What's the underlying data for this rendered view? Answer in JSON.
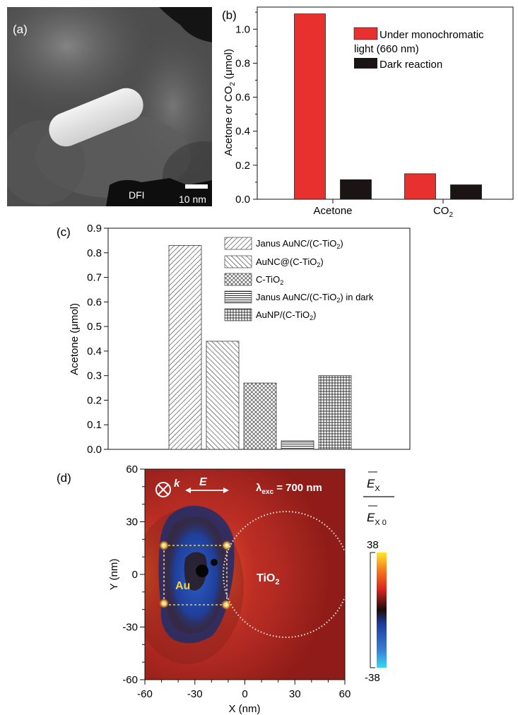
{
  "figure": {
    "panel_a": {
      "label": "(a)",
      "mode_label": "DFI",
      "scale_bar": "10 nm"
    },
    "panel_b": {
      "label": "(b)",
      "ylabel_main": "Acetone or CO",
      "ylabel_sub": "2",
      "ylabel_unit": " (μmol)",
      "legend": [
        {
          "line1": "Under monochromatic",
          "line2": "light (660 nm)",
          "color": "#e8312f"
        },
        {
          "line1": "Dark reaction",
          "line2": "",
          "color": "#1a1512"
        }
      ],
      "xticks": [
        {
          "main": "Acetone",
          "sub": ""
        },
        {
          "main": "CO",
          "sub": "2"
        }
      ],
      "yticks": [
        "0.0",
        "0.2",
        "0.4",
        "0.6",
        "0.8",
        "1.0"
      ]
    },
    "panel_c": {
      "label": "(c)",
      "ylabel": "Acetone (μmol)",
      "yticks": [
        "0.0",
        "0.1",
        "0.2",
        "0.3",
        "0.4",
        "0.5",
        "0.6",
        "0.7",
        "0.8",
        "0.9"
      ],
      "legend": [
        {
          "main": "Janus AuNC/(C-TiO",
          "sub": "2",
          "tail": ")"
        },
        {
          "main": "AuNC@(C-TiO",
          "sub": "2",
          "tail": ")"
        },
        {
          "main": "C-TiO",
          "sub": "2",
          "tail": ""
        },
        {
          "main": "Janus AuNC/(C-TiO",
          "sub": "2",
          "tail": ") in dark"
        },
        {
          "main": "AuNP/(C-TiO",
          "sub": "2",
          "tail": ")"
        }
      ]
    },
    "panel_d": {
      "label": "(d)",
      "k_label": "k",
      "e_label": "E",
      "lambda_main": "λ",
      "lambda_sub": "exc",
      "lambda_value": " = 700 nm",
      "au_label": "Au",
      "tio2_main": "TiO",
      "tio2_sub": "2",
      "xlabel": "X (nm)",
      "ylabel": "Y (nm)",
      "xticks": [
        "-60",
        "-30",
        "0",
        "30",
        "60"
      ],
      "yticks": [
        "60",
        "30",
        "0",
        "-30",
        "-60"
      ],
      "cbar_num": "E",
      "cbar_num_sub": "X",
      "cbar_den": "E",
      "cbar_den_sub": "X 0",
      "cbar_max": "38",
      "cbar_min": "-38"
    }
  },
  "chart_data": [
    {
      "type": "bar",
      "panel": "b",
      "categories": [
        "Acetone",
        "CO2"
      ],
      "series": [
        {
          "name": "Under monochromatic light (660 nm)",
          "values": [
            1.09,
            0.15
          ],
          "color": "#e8312f"
        },
        {
          "name": "Dark reaction",
          "values": [
            0.115,
            0.085
          ],
          "color": "#1a1512"
        }
      ],
      "xlabel": "",
      "ylabel": "Acetone or CO2 (μmol)",
      "ylim": [
        0,
        1.13
      ],
      "grid": false,
      "legend_position": "top-right"
    },
    {
      "type": "bar",
      "panel": "c",
      "categories": [
        "Janus AuNC/(C-TiO2)",
        "AuNC@(C-TiO2)",
        "C-TiO2",
        "Janus AuNC/(C-TiO2) in dark",
        "AuNP/(C-TiO2)"
      ],
      "values": [
        0.83,
        0.44,
        0.27,
        0.035,
        0.3
      ],
      "xlabel": "",
      "ylabel": "Acetone (μmol)",
      "ylim": [
        0,
        0.9
      ],
      "grid": false,
      "legend_position": "top-right"
    },
    {
      "type": "heatmap",
      "panel": "d",
      "xlabel": "X (nm)",
      "ylabel": "Y (nm)",
      "xlim": [
        -60,
        60
      ],
      "ylim": [
        -60,
        60
      ],
      "colorbar_range": [
        -38,
        38
      ],
      "excitation_wavelength_nm": 700
    }
  ]
}
